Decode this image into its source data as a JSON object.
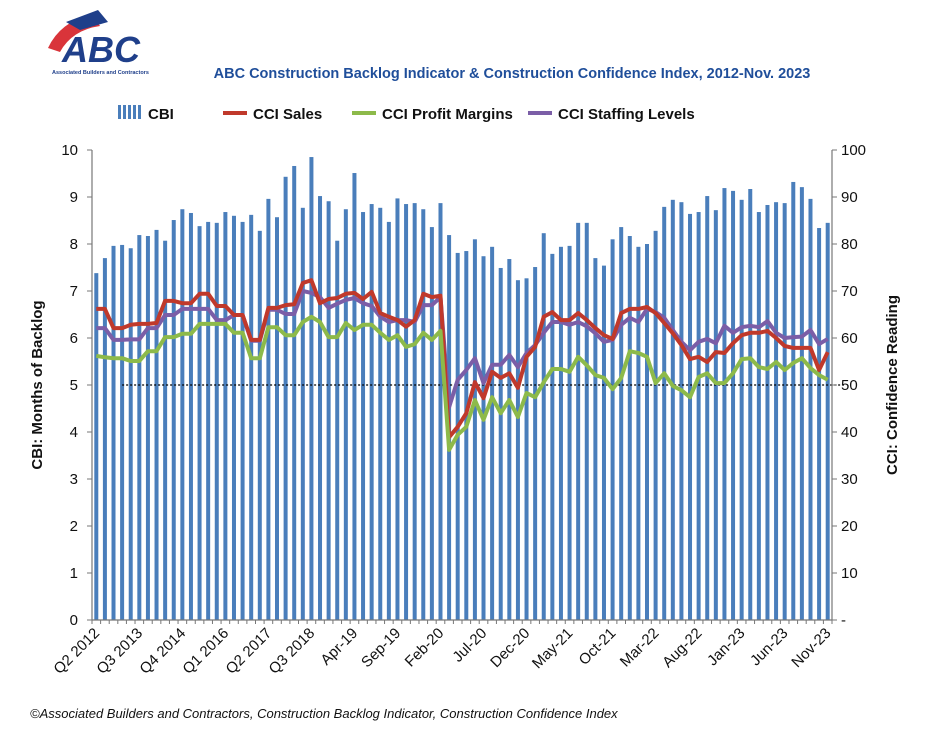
{
  "logo": {
    "text": "ABC",
    "subtext": "Associated Builders and Contractors"
  },
  "footnote": "©Associated Builders and Contractors, Construction Backlog Indicator, Construction Confidence Index",
  "chart_data": {
    "type": "bar+line",
    "title": "ABC Construction Backlog Indicator & Construction Confidence Index, 2012-Nov. 2023",
    "ylabel": "CBI: Months of Backlog",
    "y2label": "CCI: Confidence Reading",
    "ylim": [
      0,
      10
    ],
    "y2lim": [
      0,
      100
    ],
    "y_ticks": [
      "0",
      "1",
      "2",
      "3",
      "4",
      "5",
      "6",
      "7",
      "8",
      "9",
      "10"
    ],
    "y2_ticks": [
      "-",
      "10",
      "20",
      "30",
      "40",
      "50",
      "60",
      "70",
      "80",
      "90",
      "100"
    ],
    "x_tick_labels": [
      "Q2 2012",
      "Q3 2013",
      "Q4 2014",
      "Q1 2016",
      "Q2 2017",
      "Q3 2018",
      "Apr-19",
      "Sep-19",
      "Feb-20",
      "Jul-20",
      "Dec-20",
      "May-21",
      "Oct-21",
      "Mar-22",
      "Aug-22",
      "Jan-23",
      "Jun-23",
      "Nov-23"
    ],
    "reference_line": {
      "axis": "y2",
      "value": 50,
      "style": "dotted"
    },
    "grid": false,
    "legend": "top",
    "series": [
      {
        "name": "CBI",
        "type": "bar",
        "axis": "y",
        "color": "#4a7ebb",
        "values": [
          7.38,
          7.7,
          7.96,
          7.98,
          7.91,
          8.19,
          8.17,
          8.3,
          8.07,
          8.51,
          8.74,
          8.66,
          8.38,
          8.47,
          8.45,
          8.68,
          8.6,
          8.47,
          8.62,
          8.28,
          8.96,
          8.57,
          9.43,
          9.66,
          8.77,
          9.85,
          9.02,
          8.91,
          8.07,
          8.74,
          9.51,
          8.68,
          8.85,
          8.77,
          8.47,
          8.97,
          8.85,
          8.87,
          8.74,
          8.36,
          8.87,
          8.19,
          7.81,
          7.85,
          8.1,
          7.74,
          7.94,
          7.49,
          7.68,
          7.23,
          7.27,
          7.51,
          8.23,
          7.79,
          7.94,
          7.96,
          8.45,
          8.45,
          7.7,
          7.54,
          8.1,
          8.36,
          8.17,
          7.94,
          8.0,
          8.28,
          8.79,
          8.94,
          8.89,
          8.64,
          8.68,
          9.02,
          8.72,
          9.19,
          9.13,
          8.94,
          9.17,
          8.68,
          8.83,
          8.89,
          8.87,
          9.32,
          9.21,
          8.96,
          8.34,
          8.45
        ]
      },
      {
        "name": "CCI Sales",
        "type": "line",
        "axis": "y2",
        "color": "#c0392b",
        "values": [
          66.2,
          66.2,
          62.1,
          62.1,
          62.8,
          63,
          63,
          63.2,
          67.9,
          67.9,
          67.4,
          67.4,
          69.4,
          69.4,
          66.8,
          66.8,
          64.9,
          64.9,
          59.6,
          59.6,
          66.4,
          66.4,
          67,
          67.2,
          71.7,
          72.3,
          67.4,
          68.3,
          68.5,
          69.4,
          69.6,
          68.3,
          69.8,
          65.3,
          64.5,
          63.8,
          62.4,
          63.8,
          69.4,
          68.7,
          69,
          38.9,
          41.1,
          44,
          50.6,
          47.2,
          52.8,
          51.5,
          52.5,
          49.4,
          56,
          58.1,
          64.5,
          65.5,
          63.8,
          63.8,
          65.3,
          63.8,
          62.1,
          60.6,
          59.8,
          65.3,
          66.2,
          66.2,
          66.6,
          65.3,
          63.2,
          61,
          58.5,
          55.5,
          56,
          54.9,
          57,
          56.8,
          58.9,
          60.6,
          61.1,
          61.1,
          61.5,
          60,
          58.3,
          57.9,
          57.9,
          57.9,
          53.2,
          57
        ]
      },
      {
        "name": "CCI Profit Margins",
        "type": "line",
        "axis": "y2",
        "color": "#8dba4a",
        "values": [
          56.2,
          55.9,
          55.7,
          55.7,
          55.1,
          55.1,
          57.2,
          57.2,
          60.2,
          60.2,
          60.9,
          60.9,
          63,
          63,
          63,
          63,
          61.1,
          61.1,
          55.7,
          55.7,
          62.3,
          62.3,
          60.6,
          60.6,
          63.4,
          64.5,
          63.4,
          60.2,
          60.2,
          63.2,
          61.7,
          62.8,
          62.8,
          61.1,
          59.6,
          60.6,
          58.1,
          58.7,
          61.1,
          59.6,
          61.5,
          36.2,
          39.4,
          41.1,
          46.8,
          42.6,
          47.4,
          44,
          46.8,
          43.2,
          48.3,
          47.4,
          50.6,
          53.4,
          53.4,
          52.8,
          56,
          54.2,
          52.1,
          51.5,
          49.1,
          51.5,
          57.2,
          56.8,
          56,
          50.4,
          52.5,
          49.8,
          48.9,
          47.4,
          51.7,
          52.5,
          50.4,
          50.4,
          52.5,
          55.5,
          55.7,
          53.8,
          53.4,
          54.9,
          53.2,
          54.7,
          55.7,
          53.6,
          52.1,
          51.1
        ]
      },
      {
        "name": "CCI Staffing Levels",
        "type": "line",
        "axis": "y2",
        "color": "#7b5ea7",
        "values": [
          62.1,
          62.1,
          59.6,
          59.6,
          59.7,
          59.7,
          62.1,
          62.1,
          64.9,
          64.9,
          66.2,
          66.2,
          66.2,
          66.2,
          63.8,
          63.8,
          64.9,
          64.9,
          59.4,
          59.4,
          66,
          66,
          65.1,
          65.1,
          70,
          69.6,
          68.7,
          66.4,
          67.3,
          68.1,
          68.5,
          67.4,
          66.8,
          64.5,
          63.4,
          63.8,
          63.8,
          63.4,
          67,
          67,
          68.7,
          45.3,
          51.1,
          53.2,
          55.7,
          50.4,
          54.3,
          54.3,
          56.4,
          53.8,
          56.8,
          58.5,
          61.1,
          63.4,
          63.4,
          62.8,
          63.4,
          62.5,
          61,
          59.2,
          59.6,
          62.8,
          64.3,
          63.4,
          66.2,
          65.5,
          64.3,
          61.7,
          59.2,
          57.4,
          59.2,
          59.8,
          58.9,
          62.6,
          61.1,
          62.3,
          62.6,
          62.3,
          63.6,
          61.1,
          60,
          60.2,
          60.3,
          61.7,
          58.7,
          59.8
        ]
      }
    ]
  }
}
